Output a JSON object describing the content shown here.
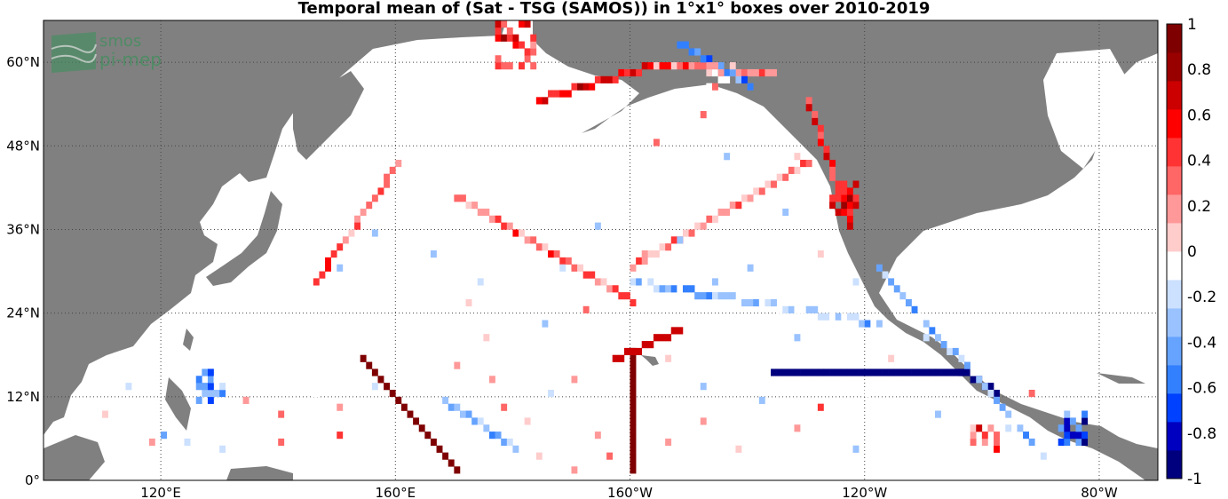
{
  "title": "Temporal mean of (Sat - TSG (SAMOS)) in 1°x1° boxes over 2010-2019",
  "logo": {
    "line1": "smos",
    "line2": "pi-mep",
    "color": "#3f8f5c"
  },
  "colors": {
    "land": "#808080",
    "ocean": "#ffffff",
    "grid": "#444444"
  },
  "chart_data": {
    "type": "heatmap",
    "title": "Temporal mean of (Sat - TSG (SAMOS)) in 1°x1° boxes over 2010-2019",
    "lon_range": [
      100,
      290
    ],
    "lat_range": [
      0,
      66
    ],
    "grid": true,
    "x_ticks": [
      {
        "value": 120,
        "label": "120°E"
      },
      {
        "value": 160,
        "label": "160°E"
      },
      {
        "value": 200,
        "label": "160°W"
      },
      {
        "value": 240,
        "label": "120°W"
      },
      {
        "value": 280,
        "label": "80°W"
      }
    ],
    "y_ticks": [
      {
        "value": 0,
        "label": "0°"
      },
      {
        "value": 12,
        "label": "12°N"
      },
      {
        "value": 24,
        "label": "24°N"
      },
      {
        "value": 36,
        "label": "36°N"
      },
      {
        "value": 48,
        "label": "48°N"
      },
      {
        "value": 60,
        "label": "60°N"
      }
    ],
    "colorbar": {
      "range": [
        -1,
        1
      ],
      "ticks": [
        {
          "value": 1,
          "label": "1"
        },
        {
          "value": 0.8,
          "label": "0.8"
        },
        {
          "value": 0.6,
          "label": "0.6"
        },
        {
          "value": 0.4,
          "label": "0.4"
        },
        {
          "value": 0.2,
          "label": "0.2"
        },
        {
          "value": 0,
          "label": "0"
        },
        {
          "value": -0.2,
          "label": "-0.2"
        },
        {
          "value": -0.4,
          "label": "-0.4"
        },
        {
          "value": -0.6,
          "label": "-0.6"
        },
        {
          "value": -0.8,
          "label": "-0.8"
        },
        {
          "value": -1,
          "label": "-1"
        }
      ],
      "colors": [
        "#00007f",
        "#0000c0",
        "#0040ff",
        "#3380ff",
        "#66a3ff",
        "#99c2ff",
        "#cce0ff",
        "#ffffff",
        "#ffcccc",
        "#ff9999",
        "#ff6666",
        "#ff3333",
        "#ff0000",
        "#cc0000",
        "#990000",
        "#7f0000"
      ]
    },
    "tracks": [
      {
        "name": "diagonal-track-1",
        "start": [
          154,
          17
        ],
        "end": [
          170,
          1
        ],
        "value": 0.95
      },
      {
        "name": "vertical-track-160w",
        "start": [
          200,
          1
        ],
        "end": [
          200,
          18
        ],
        "value": 0.9
      },
      {
        "name": "horizontal-track-15n",
        "start": [
          224,
          15
        ],
        "end": [
          256,
          15
        ],
        "value": -1.0
      },
      {
        "name": "central-america-track",
        "start": [
          256,
          15
        ],
        "end": [
          262,
          12
        ],
        "value": -0.95
      },
      {
        "name": "diagonal-track-2",
        "start": [
          197,
          17
        ],
        "end": [
          208,
          21
        ],
        "value": 0.7
      },
      {
        "name": "aleutian-track",
        "start": [
          184,
          54
        ],
        "end": [
          204,
          59
        ],
        "value": 0.6
      },
      {
        "name": "alaska-coast-track",
        "start": [
          204,
          59
        ],
        "end": [
          224,
          58
        ],
        "value": 0.3
      },
      {
        "name": "west-coast-track",
        "start": [
          230,
          54
        ],
        "end": [
          237,
          36
        ],
        "value": 0.5
      },
      {
        "name": "ship-track-a",
        "start": [
          160,
          45
        ],
        "end": [
          146,
          28
        ],
        "value": 0.3
      },
      {
        "name": "ship-track-b",
        "start": [
          170,
          40
        ],
        "end": [
          200,
          25
        ],
        "value": 0.3
      },
      {
        "name": "ship-track-c",
        "start": [
          200,
          30
        ],
        "end": [
          230,
          45
        ],
        "value": 0.3
      },
      {
        "name": "ship-track-d",
        "start": [
          200,
          28
        ],
        "end": [
          242,
          22
        ],
        "value": -0.3
      },
      {
        "name": "ship-track-e",
        "start": [
          168,
          11
        ],
        "end": [
          180,
          4
        ],
        "value": -0.4
      },
      {
        "name": "ship-track-f",
        "start": [
          242,
          30
        ],
        "end": [
          268,
          5
        ],
        "value": -0.3
      },
      {
        "name": "gulf-alaska-track",
        "start": [
          208,
          62
        ],
        "end": [
          220,
          56
        ],
        "value": -0.5
      }
    ],
    "blobs": [
      {
        "center": [
          180,
          62
        ],
        "radius": 3,
        "value": 0.5
      },
      {
        "center": [
          215,
          57
        ],
        "radius": 2,
        "value": 0.2
      },
      {
        "center": [
          236,
          40
        ],
        "radius": 2,
        "value": 0.6
      },
      {
        "center": [
          128,
          13
        ],
        "radius": 2,
        "value": -0.4
      },
      {
        "center": [
          275,
          7
        ],
        "radius": 2,
        "value": -0.6
      },
      {
        "center": [
          260,
          6
        ],
        "radius": 2,
        "value": 0.4
      }
    ],
    "scatter_sea": [
      [
        120,
        6
      ],
      [
        124,
        5
      ],
      [
        130,
        4
      ],
      [
        140,
        5
      ],
      [
        150,
        6
      ],
      [
        150,
        10
      ],
      [
        156,
        13
      ],
      [
        162,
        14
      ],
      [
        170,
        16
      ],
      [
        175,
        20
      ],
      [
        178,
        10
      ],
      [
        182,
        8
      ],
      [
        186,
        12
      ],
      [
        190,
        14
      ],
      [
        194,
        6
      ],
      [
        196,
        3
      ],
      [
        206,
        5
      ],
      [
        212,
        8
      ],
      [
        218,
        4
      ],
      [
        222,
        11
      ],
      [
        228,
        7
      ],
      [
        232,
        10
      ],
      [
        238,
        4
      ],
      [
        240,
        12
      ],
      [
        244,
        8
      ],
      [
        248,
        5
      ],
      [
        252,
        9
      ],
      [
        256,
        3
      ],
      [
        264,
        7
      ],
      [
        270,
        3
      ],
      [
        150,
        30
      ],
      [
        156,
        35
      ],
      [
        166,
        32
      ],
      [
        174,
        28
      ],
      [
        180,
        34
      ],
      [
        188,
        30
      ],
      [
        194,
        36
      ],
      [
        202,
        32
      ],
      [
        208,
        34
      ],
      [
        214,
        28
      ],
      [
        220,
        30
      ],
      [
        226,
        38
      ],
      [
        232,
        32
      ],
      [
        238,
        28
      ],
      [
        222,
        42
      ],
      [
        216,
        46
      ],
      [
        228,
        46
      ],
      [
        204,
        48
      ],
      [
        212,
        52
      ],
      [
        196,
        54
      ],
      [
        165,
        42
      ],
      [
        172,
        25
      ],
      [
        185,
        22
      ],
      [
        192,
        24
      ],
      [
        244,
        17
      ],
      [
        250,
        20
      ],
      [
        234,
        24
      ],
      [
        228,
        20
      ],
      [
        212,
        13
      ],
      [
        206,
        17
      ],
      [
        110,
        9
      ],
      [
        114,
        13
      ],
      [
        118,
        5
      ],
      [
        134,
        11
      ],
      [
        140,
        9
      ],
      [
        146,
        12
      ],
      [
        176,
        14
      ],
      [
        184,
        3
      ],
      [
        190,
        1
      ],
      [
        268,
        12
      ]
    ]
  }
}
